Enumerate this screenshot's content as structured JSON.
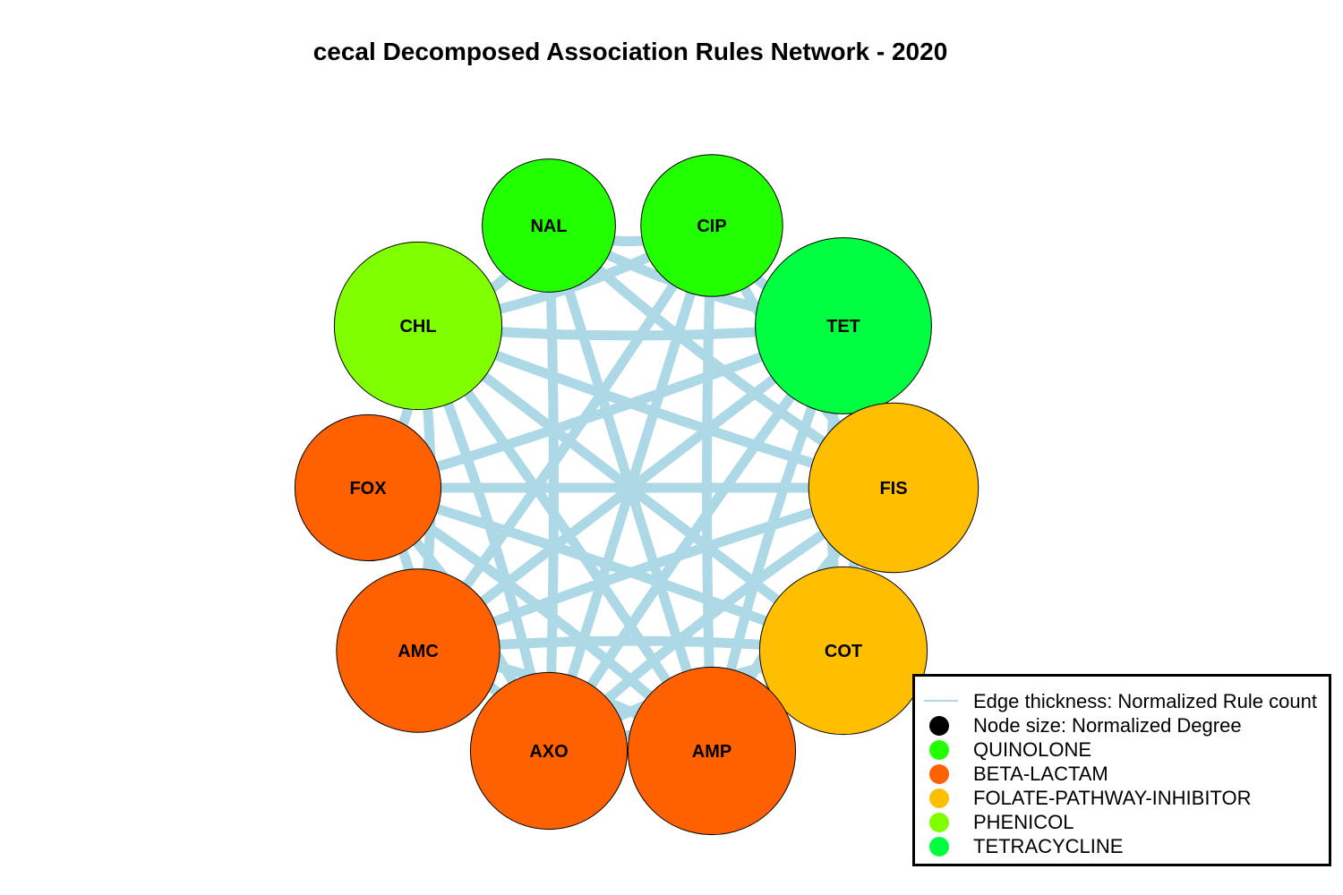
{
  "title": "cecal Decomposed Association Rules Network - 2020",
  "nodes": [
    {
      "id": "NAL",
      "class": "QUINOLONE",
      "color": "#22ff00",
      "size": 0.62
    },
    {
      "id": "CIP",
      "class": "QUINOLONE",
      "color": "#22ff00",
      "size": 0.66
    },
    {
      "id": "TET",
      "class": "TETRACYCLINE",
      "color": "#00ff40",
      "size": 0.82
    },
    {
      "id": "FIS",
      "class": "FOLATE-PATHWAY-INHIBITOR",
      "color": "#ffbf00",
      "size": 0.79
    },
    {
      "id": "COT",
      "class": "FOLATE-PATHWAY-INHIBITOR",
      "color": "#ffbf00",
      "size": 0.78
    },
    {
      "id": "AMP",
      "class": "BETA-LACTAM",
      "color": "#ff6000",
      "size": 0.78
    },
    {
      "id": "AXO",
      "class": "BETA-LACTAM",
      "color": "#ff6000",
      "size": 0.73
    },
    {
      "id": "AMC",
      "class": "BETA-LACTAM",
      "color": "#ff6000",
      "size": 0.76
    },
    {
      "id": "FOX",
      "class": "BETA-LACTAM",
      "color": "#ff6000",
      "size": 0.68
    },
    {
      "id": "CHL",
      "class": "PHENICOL",
      "color": "#80ff00",
      "size": 0.78
    }
  ],
  "edges": [
    [
      "NAL",
      "CIP"
    ],
    [
      "NAL",
      "CHL"
    ],
    [
      "NAL",
      "TET"
    ],
    [
      "NAL",
      "FIS"
    ],
    [
      "NAL",
      "AMP"
    ],
    [
      "NAL",
      "AXO"
    ],
    [
      "CIP",
      "CHL"
    ],
    [
      "CIP",
      "TET"
    ],
    [
      "CIP",
      "FIS"
    ],
    [
      "CIP",
      "AMC"
    ],
    [
      "CIP",
      "AXO"
    ],
    [
      "CIP",
      "AMP"
    ],
    [
      "CHL",
      "TET"
    ],
    [
      "CHL",
      "FIS"
    ],
    [
      "CHL",
      "COT"
    ],
    [
      "CHL",
      "AMP"
    ],
    [
      "CHL",
      "AXO"
    ],
    [
      "CHL",
      "FOX"
    ],
    [
      "CHL",
      "AMC"
    ],
    [
      "TET",
      "FOX"
    ],
    [
      "TET",
      "AMC"
    ],
    [
      "TET",
      "AXO"
    ],
    [
      "TET",
      "AMP"
    ],
    [
      "TET",
      "FIS"
    ],
    [
      "TET",
      "COT"
    ],
    [
      "FOX",
      "FIS"
    ],
    [
      "FOX",
      "COT"
    ],
    [
      "FOX",
      "AMP"
    ],
    [
      "FOX",
      "AXO"
    ],
    [
      "FOX",
      "AMC"
    ],
    [
      "FIS",
      "COT"
    ],
    [
      "FIS",
      "AMC"
    ],
    [
      "FIS",
      "AXO"
    ],
    [
      "FIS",
      "AMP"
    ],
    [
      "COT",
      "AMC"
    ],
    [
      "COT",
      "AXO"
    ],
    [
      "COT",
      "AMP"
    ],
    [
      "AMC",
      "AXO"
    ],
    [
      "AMC",
      "AMP"
    ],
    [
      "AXO",
      "AMP"
    ]
  ],
  "edge_color": "#add8e6",
  "legend": {
    "items": [
      {
        "label": "Edge thickness: Normalized Rule count",
        "type": "line",
        "color": "#add8e6"
      },
      {
        "label": "Node size: Normalized Degree",
        "type": "dot",
        "color": "#000000"
      },
      {
        "label": "QUINOLONE",
        "type": "dot",
        "color": "#22ff00"
      },
      {
        "label": "BETA-LACTAM",
        "type": "dot",
        "color": "#ff6000"
      },
      {
        "label": "FOLATE-PATHWAY-INHIBITOR",
        "type": "dot",
        "color": "#ffbf00"
      },
      {
        "label": "PHENICOL",
        "type": "dot",
        "color": "#80ff00"
      },
      {
        "label": "TETRACYCLINE",
        "type": "dot",
        "color": "#00ff40"
      }
    ]
  }
}
